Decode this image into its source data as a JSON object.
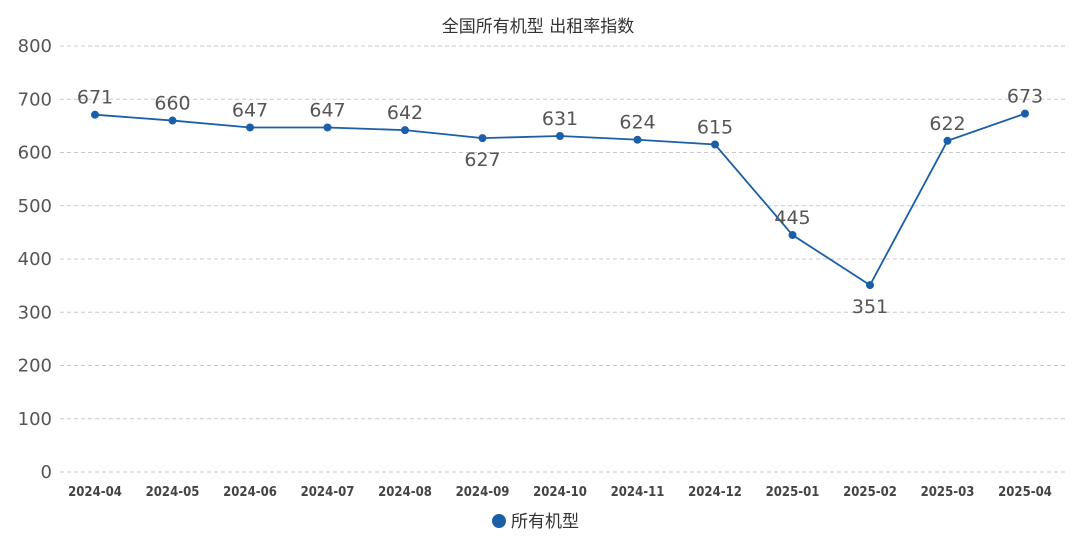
{
  "chart_data": {
    "type": "line",
    "title": "全国所有机型  出租率指数",
    "categories": [
      "2024-04",
      "2024-05",
      "2024-06",
      "2024-07",
      "2024-08",
      "2024-09",
      "2024-10",
      "2024-11",
      "2024-12",
      "2025-01",
      "2025-02",
      "2025-03",
      "2025-04"
    ],
    "series": [
      {
        "name": "所有机型",
        "values": [
          671,
          660,
          647,
          647,
          642,
          627,
          631,
          624,
          615,
          445,
          351,
          622,
          673
        ],
        "color": "#1a5fa8"
      }
    ],
    "ylim": [
      0,
      800
    ],
    "yticks": [
      0,
      100,
      200,
      300,
      400,
      500,
      600,
      700,
      800
    ],
    "grid": true,
    "legend": "bottom"
  }
}
